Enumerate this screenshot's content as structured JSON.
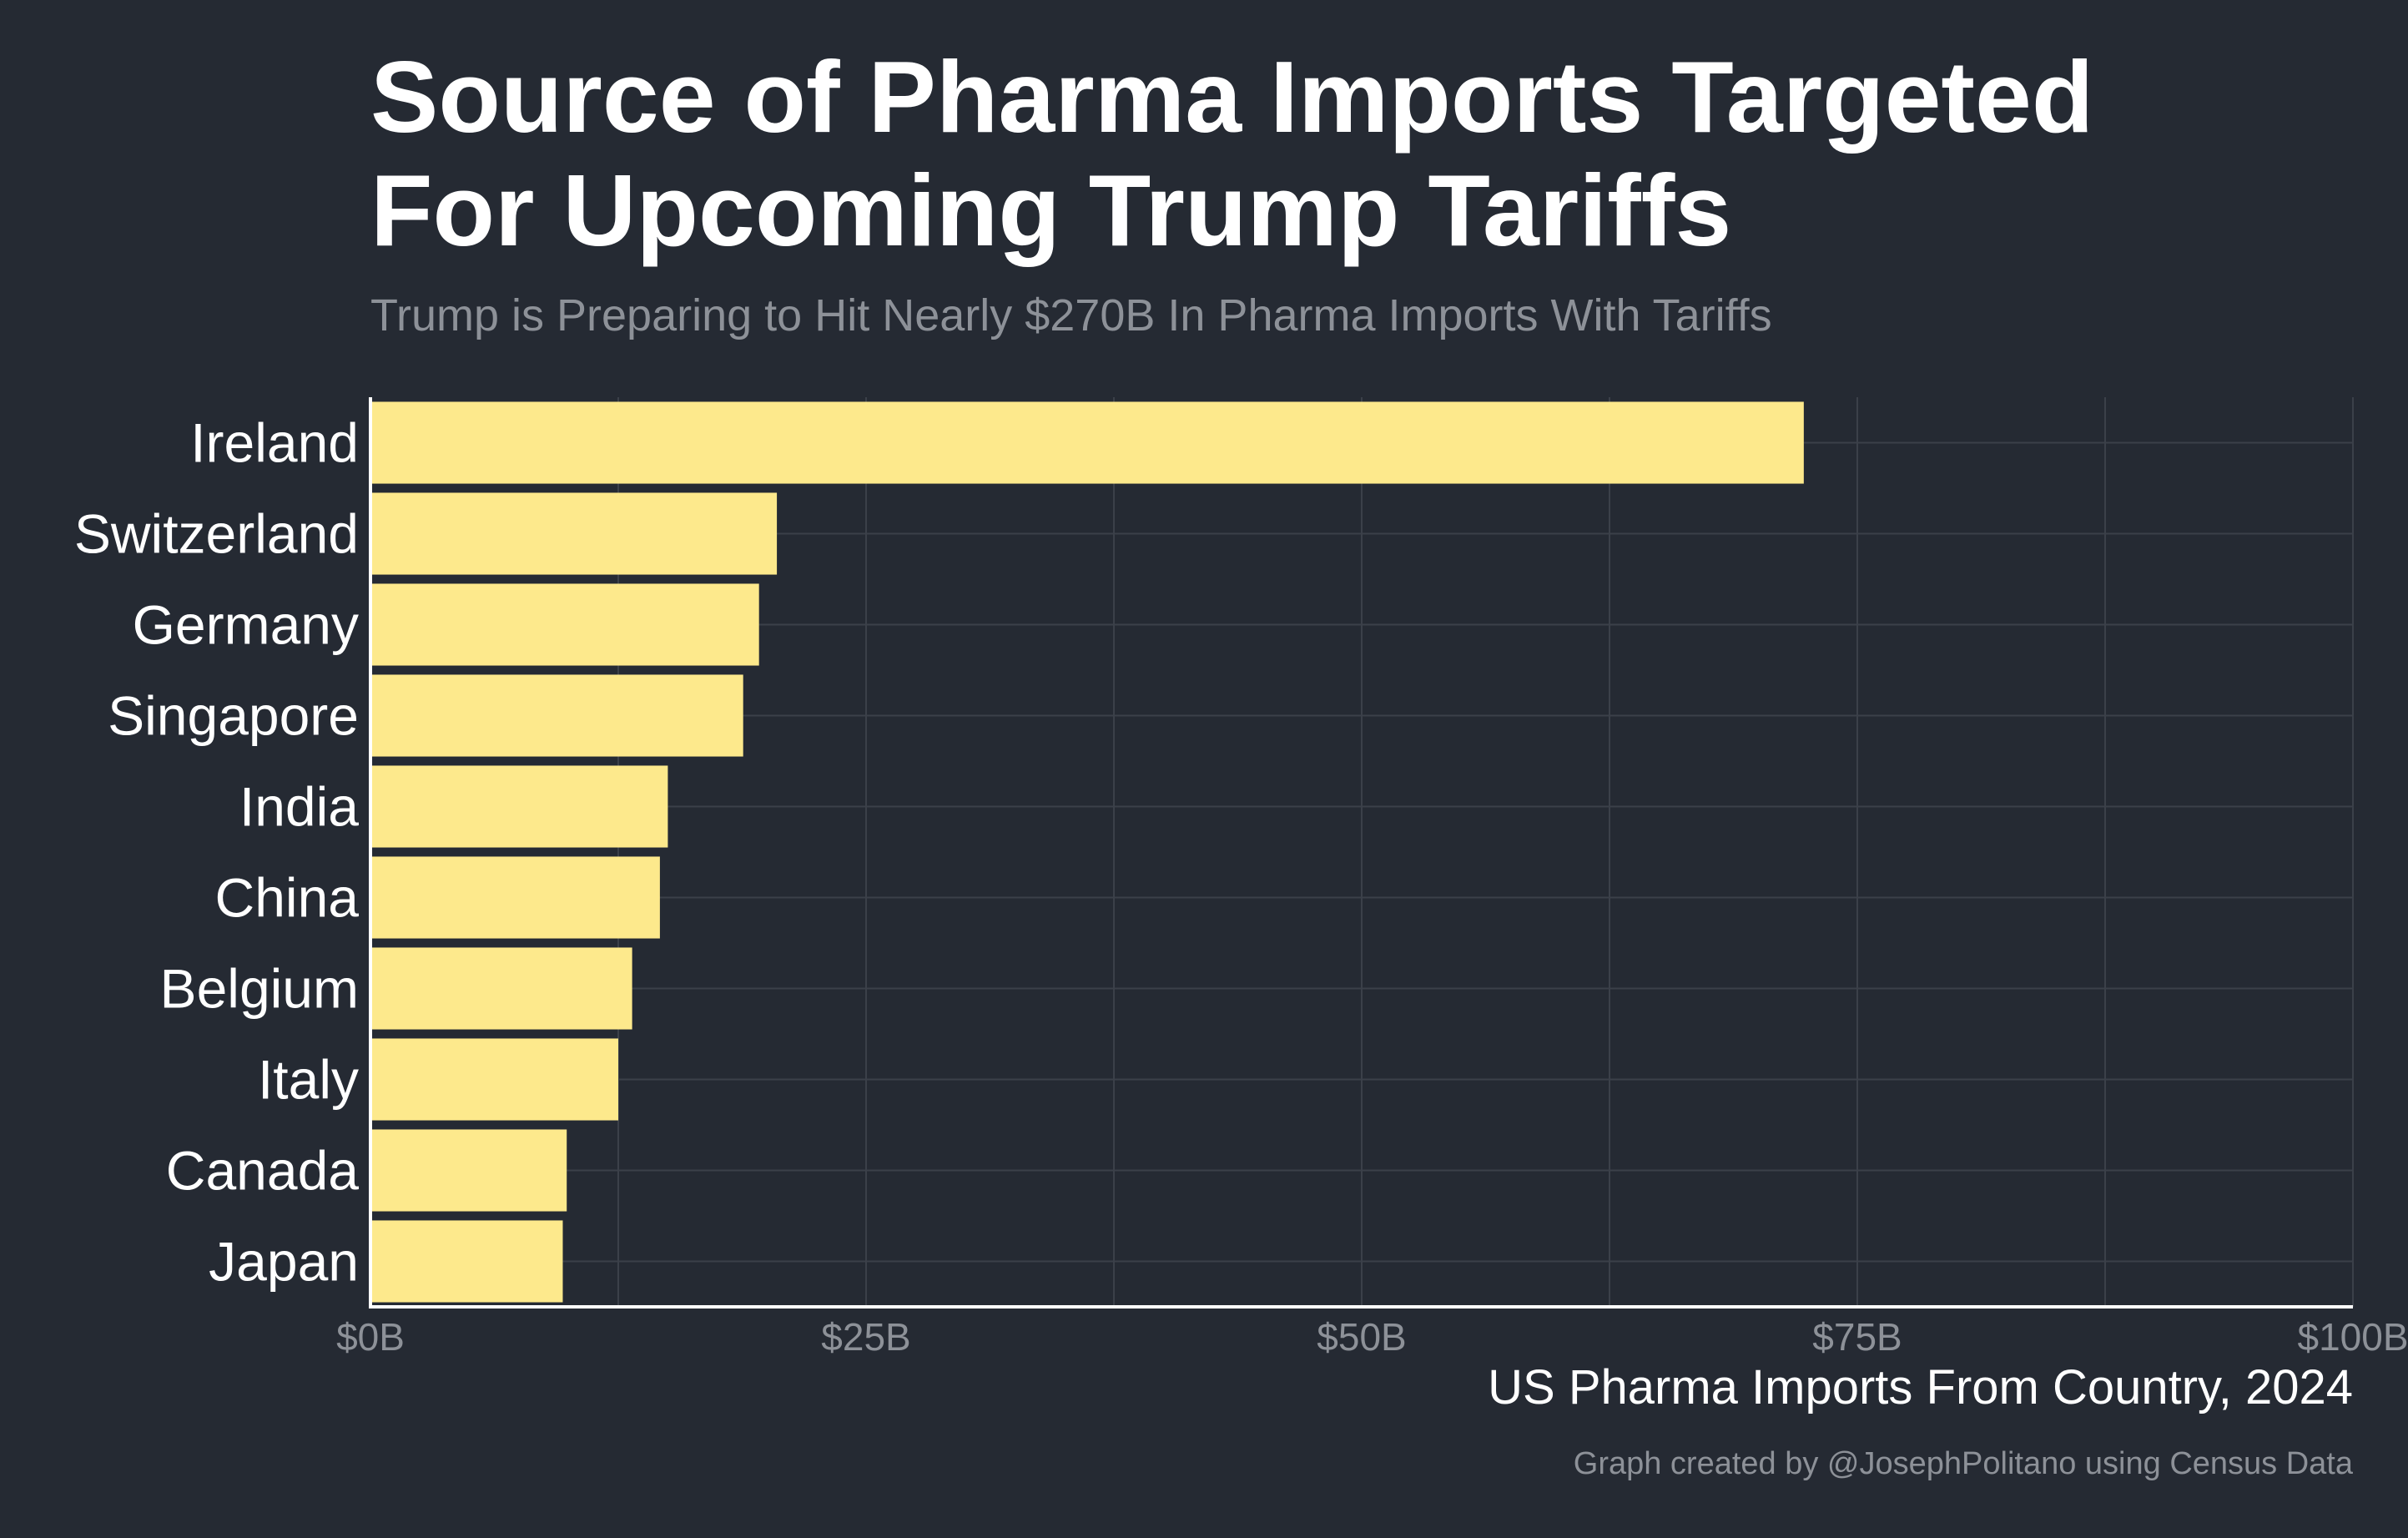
{
  "chart_data": {
    "type": "bar",
    "orientation": "horizontal",
    "title": "Source of Pharma Imports Targeted\nFor Upcoming Trump Tariffs",
    "subtitle": "Trump is Preparing to Hit Nearly $270B In Pharma Imports With Tariffs",
    "xlabel": "US Pharma Imports From Country, 2024",
    "ylabel": "",
    "caption": "Graph created by @JosephPolitano using Census Data",
    "categories": [
      "Ireland",
      "Switzerland",
      "Germany",
      "Singapore",
      "India",
      "China",
      "Belgium",
      "Italy",
      "Canada",
      "Japan"
    ],
    "values": [
      72.3,
      20.5,
      19.6,
      18.8,
      15.0,
      14.6,
      13.2,
      12.5,
      9.9,
      9.7
    ],
    "unit": "billion USD",
    "xlim": [
      0,
      100
    ],
    "xticks": [
      0,
      25,
      50,
      75,
      100
    ],
    "xtick_labels": [
      "$0B",
      "$25B",
      "$50B",
      "$75B",
      "$100B"
    ],
    "grid": true,
    "colors": {
      "background": "#252a33",
      "bar": "#fde98c",
      "grid": "#3b4049",
      "axis": "#ffffff",
      "tick_text": "#8d9198",
      "label_text": "#ffffff"
    }
  }
}
